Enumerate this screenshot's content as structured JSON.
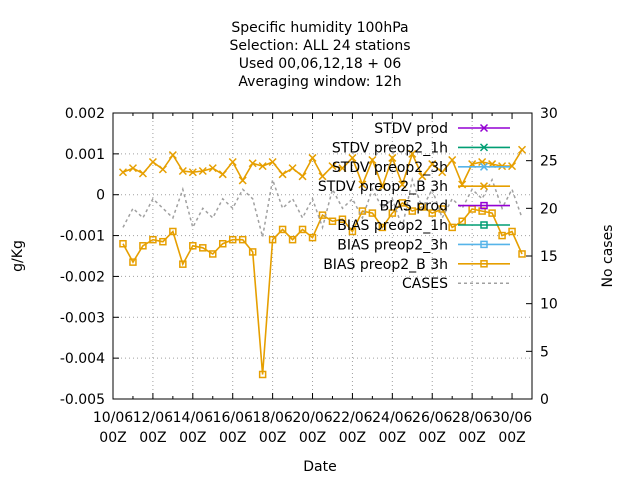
{
  "chart_data": {
    "type": "line",
    "title_lines": [
      "Specific humidity 100hPa",
      "Selection: ALL      24 stations",
      "Used  00,06,12,18 + 06",
      "Averaging window: 12h"
    ],
    "xlabel": "Date",
    "ylabel": "g/Kg",
    "y2label": "No cases",
    "ylim": [
      -0.005,
      0.002
    ],
    "y2lim": [
      0,
      30
    ],
    "yticks": [
      "0.002",
      "0.001",
      "0",
      "-0.001",
      "-0.002",
      "-0.003",
      "-0.004",
      "-0.005"
    ],
    "y2ticks": [
      "30",
      "25",
      "20",
      "15",
      "10",
      "5",
      "0"
    ],
    "xticks": [
      {
        "l1": "10/06",
        "l2": "00Z"
      },
      {
        "l1": "12/06",
        "l2": "00Z"
      },
      {
        "l1": "14/06",
        "l2": "00Z"
      },
      {
        "l1": "16/06",
        "l2": "00Z"
      },
      {
        "l1": "18/06",
        "l2": "00Z"
      },
      {
        "l1": "20/06",
        "l2": "00Z"
      },
      {
        "l1": "22/06",
        "l2": "00Z"
      },
      {
        "l1": "24/06",
        "l2": "00Z"
      },
      {
        "l1": "26/06",
        "l2": "00Z"
      },
      {
        "l1": "28/06",
        "l2": "00Z"
      },
      {
        "l1": "30/06",
        "l2": "00Z"
      }
    ],
    "grid": true,
    "legend_position": "top-right",
    "legend": [
      {
        "label": "STDV prod",
        "color": "#9400d3",
        "marker": "x"
      },
      {
        "label": "STDV preop2_1h",
        "color": "#009e73",
        "marker": "x"
      },
      {
        "label": "STDV preop2_3h",
        "color": "#56b4e9",
        "marker": "x"
      },
      {
        "label": "STDV preop2_B 3h",
        "color": "#e69f00",
        "marker": "x"
      },
      {
        "label": "BIAS prod",
        "color": "#9400d3",
        "marker": "square"
      },
      {
        "label": "BIAS preop2_1h",
        "color": "#009e73",
        "marker": "square"
      },
      {
        "label": "BIAS preop2_3h",
        "color": "#56b4e9",
        "marker": "square"
      },
      {
        "label": "BIAS preop2_B 3h",
        "color": "#e69f00",
        "marker": "square"
      },
      {
        "label": "CASES",
        "color": "#a0a0a0",
        "marker": "dashed"
      }
    ],
    "x_days": [
      10.5,
      11,
      11.5,
      12,
      12.5,
      13,
      13.5,
      14,
      14.5,
      15,
      15.5,
      16,
      16.5,
      17,
      17.5,
      18,
      18.5,
      19,
      19.5,
      20,
      20.5,
      21,
      21.5,
      22,
      22.5,
      23,
      23.5,
      24,
      24.5,
      25,
      25.5,
      26,
      26.5,
      27,
      27.5,
      28,
      28.5,
      29,
      29.5,
      30,
      30.5
    ],
    "series": [
      {
        "name": "STDV preop2_B 3h",
        "axis": "y",
        "marker": "x",
        "values": [
          0.00055,
          0.00065,
          0.00052,
          0.0008,
          0.00062,
          0.00097,
          0.00058,
          0.00055,
          0.00058,
          0.00065,
          0.0005,
          0.0008,
          0.00035,
          0.00077,
          0.0007,
          0.0008,
          0.0005,
          0.00065,
          0.00045,
          0.0009,
          0.00045,
          0.0007,
          0.00065,
          0.0009,
          0.00025,
          0.00085,
          0.0002,
          0.0009,
          0.00025,
          0.001,
          0.00045,
          0.00075,
          0.00055,
          0.00085,
          0.00025,
          0.00075,
          0.0008,
          0.00075,
          0.0007,
          0.0007,
          0.0011
        ]
      },
      {
        "name": "BIAS preop2_B 3h",
        "axis": "y",
        "marker": "square",
        "values": [
          -0.0012,
          -0.00165,
          -0.00125,
          -0.0011,
          -0.00115,
          -0.0009,
          -0.0017,
          -0.00125,
          -0.0013,
          -0.00145,
          -0.0012,
          -0.0011,
          -0.0011,
          -0.0014,
          -0.0044,
          -0.0011,
          -0.00085,
          -0.0011,
          -0.00085,
          -0.00105,
          -0.0005,
          -0.00065,
          -0.0006,
          -0.0009,
          -0.0004,
          -0.00045,
          -0.0008,
          -0.00045,
          -0.0002,
          -0.0004,
          -0.0003,
          -0.00045,
          -0.00035,
          -0.0008,
          -0.00065,
          -0.00035,
          -0.0004,
          -0.00045,
          -0.001,
          -0.0009,
          -0.00145
        ]
      },
      {
        "name": "CASES",
        "axis": "y2",
        "marker": "none",
        "values": [
          18,
          20,
          19,
          21,
          20,
          19,
          22,
          18,
          20,
          19,
          21,
          20,
          22,
          21,
          17,
          23,
          20,
          21,
          19,
          21,
          18,
          22,
          20,
          21,
          19,
          22,
          20,
          21,
          18,
          23,
          20,
          22,
          19,
          21,
          20,
          22,
          21,
          23,
          20,
          22,
          19
        ]
      }
    ]
  }
}
